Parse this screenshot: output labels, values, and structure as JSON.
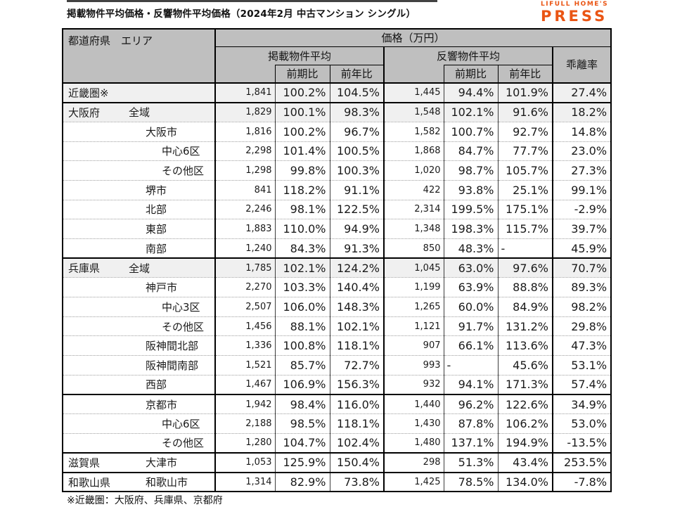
{
  "page": {
    "title": "掲載物件平均価格・反響物件平均価格（2024年2月 中古マンション シングル）",
    "footnote": "※近畿圏：大阪府、兵庫県、京都府"
  },
  "logo": {
    "line1": "LIFULL HOME'S",
    "line2": "PRESS",
    "color": "#EA5514"
  },
  "colors": {
    "header_bg": "#BFBFBF",
    "shaded_row_bg": "#F0F0F0",
    "border": "#000000",
    "logo_orange": "#EA5514"
  },
  "table": {
    "header": {
      "label": "都道府県　エリア",
      "price_group": "価格（万円）",
      "listed_group": "掲載物件平均",
      "response_group": "反響物件平均",
      "deviation": "乖離率",
      "prev_period": "前期比",
      "prev_year": "前年比"
    },
    "columns": [
      "掲載物件平均",
      "掲載前期比",
      "掲載前年比",
      "反響物件平均",
      "反響前期比",
      "反響前年比",
      "乖離率"
    ],
    "rows": [
      {
        "pref": "近畿圏※",
        "area": "",
        "indent": -1,
        "shaded": true,
        "section_start": true,
        "values": [
          "1,841",
          "100.2%",
          "104.5%",
          "1,445",
          "94.4%",
          "101.9%",
          "27.4%"
        ]
      },
      {
        "pref": "大阪府",
        "area": "全域",
        "indent": 0,
        "shaded": true,
        "section_start": true,
        "values": [
          "1,829",
          "100.1%",
          "98.3%",
          "1,548",
          "102.1%",
          "91.6%",
          "18.2%"
        ]
      },
      {
        "pref": "",
        "area": "大阪市",
        "indent": 1,
        "shaded": false,
        "section_start": false,
        "values": [
          "1,816",
          "100.2%",
          "96.7%",
          "1,582",
          "100.7%",
          "92.7%",
          "14.8%"
        ]
      },
      {
        "pref": "",
        "area": "中心6区",
        "indent": 2,
        "shaded": false,
        "section_start": false,
        "values": [
          "2,298",
          "101.4%",
          "100.5%",
          "1,868",
          "84.7%",
          "77.7%",
          "23.0%"
        ]
      },
      {
        "pref": "",
        "area": "その他区",
        "indent": 2,
        "shaded": false,
        "section_start": false,
        "values": [
          "1,298",
          "99.8%",
          "100.3%",
          "1,020",
          "98.7%",
          "105.7%",
          "27.3%"
        ]
      },
      {
        "pref": "",
        "area": "堺市",
        "indent": 1,
        "shaded": false,
        "section_start": false,
        "values": [
          "841",
          "118.2%",
          "91.1%",
          "422",
          "93.8%",
          "25.1%",
          "99.1%"
        ]
      },
      {
        "pref": "",
        "area": "北部",
        "indent": 1,
        "shaded": false,
        "section_start": false,
        "values": [
          "2,246",
          "98.1%",
          "122.5%",
          "2,314",
          "199.5%",
          "175.1%",
          "-2.9%"
        ]
      },
      {
        "pref": "",
        "area": "東部",
        "indent": 1,
        "shaded": false,
        "section_start": false,
        "values": [
          "1,883",
          "110.0%",
          "94.9%",
          "1,348",
          "198.3%",
          "115.7%",
          "39.7%"
        ]
      },
      {
        "pref": "",
        "area": "南部",
        "indent": 1,
        "shaded": false,
        "section_start": false,
        "values": [
          "1,240",
          "84.3%",
          "91.3%",
          "850",
          "48.3%",
          "-",
          "45.9%"
        ]
      },
      {
        "pref": "兵庫県",
        "area": "全域",
        "indent": 0,
        "shaded": true,
        "section_start": true,
        "values": [
          "1,785",
          "102.1%",
          "124.2%",
          "1,045",
          "63.0%",
          "97.6%",
          "70.7%"
        ]
      },
      {
        "pref": "",
        "area": "神戸市",
        "indent": 1,
        "shaded": false,
        "section_start": false,
        "values": [
          "2,270",
          "103.3%",
          "140.4%",
          "1,199",
          "63.9%",
          "88.8%",
          "89.3%"
        ]
      },
      {
        "pref": "",
        "area": "中心3区",
        "indent": 2,
        "shaded": false,
        "section_start": false,
        "values": [
          "2,507",
          "106.0%",
          "148.3%",
          "1,265",
          "60.0%",
          "84.9%",
          "98.2%"
        ]
      },
      {
        "pref": "",
        "area": "その他区",
        "indent": 2,
        "shaded": false,
        "section_start": false,
        "values": [
          "1,456",
          "88.1%",
          "102.1%",
          "1,121",
          "91.7%",
          "131.2%",
          "29.8%"
        ]
      },
      {
        "pref": "",
        "area": "阪神間北部",
        "indent": 1,
        "shaded": false,
        "section_start": false,
        "values": [
          "1,336",
          "100.8%",
          "118.1%",
          "907",
          "66.1%",
          "113.6%",
          "47.3%"
        ]
      },
      {
        "pref": "",
        "area": "阪神間南部",
        "indent": 1,
        "shaded": false,
        "section_start": false,
        "values": [
          "1,521",
          "85.7%",
          "72.7%",
          "993",
          "-",
          "45.6%",
          "53.1%"
        ]
      },
      {
        "pref": "",
        "area": "西部",
        "indent": 1,
        "shaded": false,
        "section_start": false,
        "values": [
          "1,467",
          "106.9%",
          "156.3%",
          "932",
          "94.1%",
          "171.3%",
          "57.4%"
        ]
      },
      {
        "pref": "",
        "area": "京都市",
        "indent": 1,
        "shaded": false,
        "section_start": true,
        "values": [
          "1,942",
          "98.4%",
          "116.0%",
          "1,440",
          "96.2%",
          "122.6%",
          "34.9%"
        ]
      },
      {
        "pref": "",
        "area": "中心6区",
        "indent": 2,
        "shaded": false,
        "section_start": false,
        "values": [
          "2,188",
          "98.5%",
          "118.1%",
          "1,430",
          "87.8%",
          "106.2%",
          "53.0%"
        ]
      },
      {
        "pref": "",
        "area": "その他区",
        "indent": 2,
        "shaded": false,
        "section_start": false,
        "values": [
          "1,280",
          "104.7%",
          "102.4%",
          "1,480",
          "137.1%",
          "194.9%",
          "-13.5%"
        ]
      },
      {
        "pref": "滋賀県",
        "area": "大津市",
        "indent": 1,
        "shaded": false,
        "section_start": true,
        "values": [
          "1,053",
          "125.9%",
          "150.4%",
          "298",
          "51.3%",
          "43.4%",
          "253.5%"
        ]
      },
      {
        "pref": "和歌山県",
        "area": "和歌山市",
        "indent": 1,
        "shaded": false,
        "section_start": true,
        "values": [
          "1,314",
          "82.9%",
          "73.8%",
          "1,425",
          "78.5%",
          "134.0%",
          "-7.8%"
        ]
      }
    ]
  }
}
